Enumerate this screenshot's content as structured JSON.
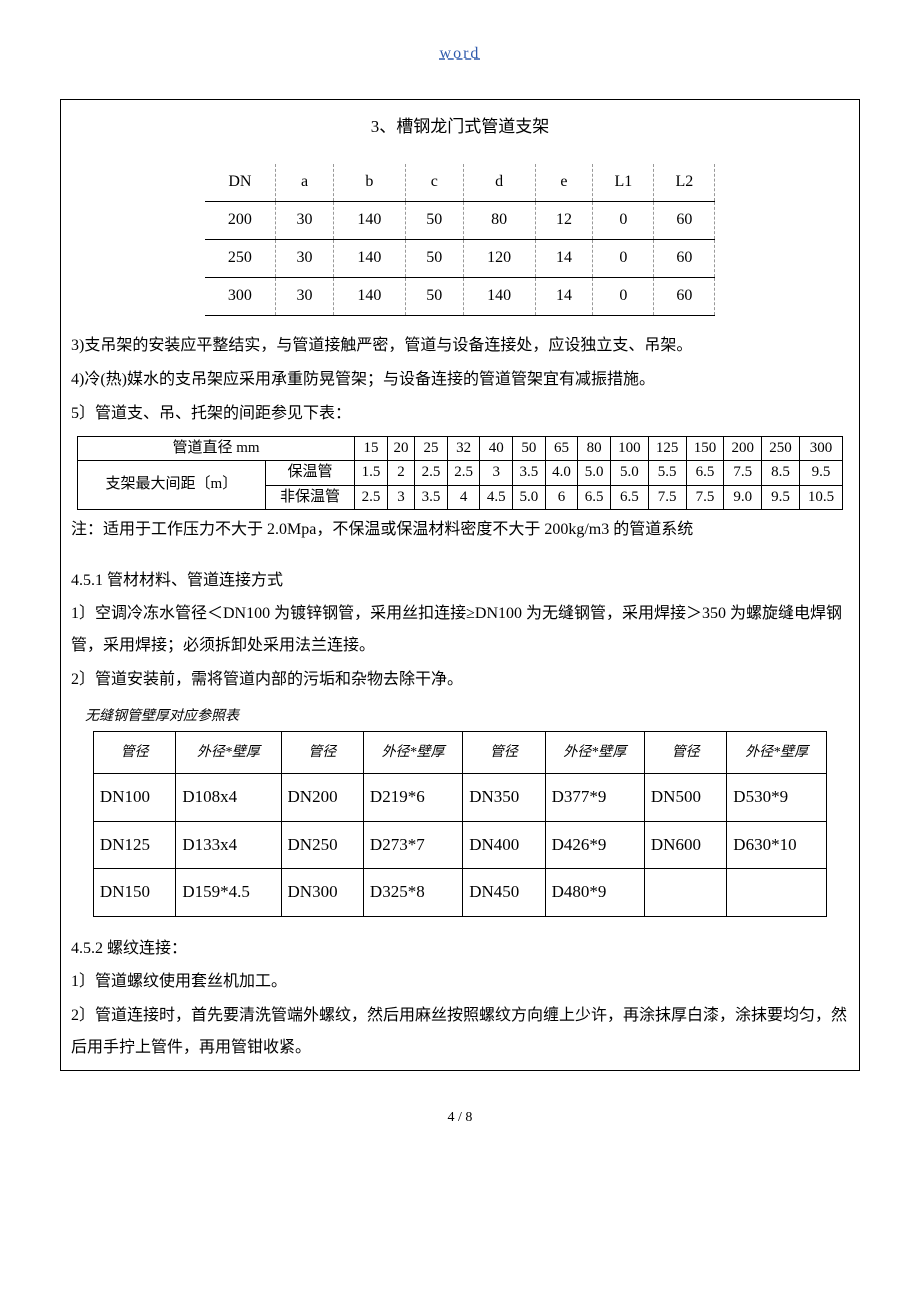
{
  "header": {
    "link_text": "word"
  },
  "box": {
    "title": "3、槽钢龙门式管道支架",
    "table1_headers": [
      "DN",
      "a",
      "b",
      "c",
      "d",
      "e",
      "L1",
      "L2"
    ],
    "table1_rows": [
      [
        "200",
        "30",
        "140",
        "50",
        "80",
        "12",
        "0",
        "60"
      ],
      [
        "250",
        "30",
        "140",
        "50",
        "120",
        "14",
        "0",
        "60"
      ],
      [
        "300",
        "30",
        "140",
        "50",
        "140",
        "14",
        "0",
        "60"
      ]
    ],
    "p3": "3)支吊架的安装应平整结实，与管道接触严密，管道与设备连接处，应设独立支、吊架。",
    "p4": "4)冷(热)媒水的支吊架应采用承重防晃管架；与设备连接的管道管架宜有减振措施。",
    "p5": "5〕管道支、吊、托架的间距参见下表：",
    "table2_head_label": "管道直径 mm",
    "table2_cols": [
      "15",
      "20",
      "25",
      "32",
      "40",
      "50",
      "65",
      "80",
      "100",
      "125",
      "150",
      "200",
      "250",
      "300"
    ],
    "table2_rowgroup_label": "支架最大间距〔m〕",
    "table2_row1_label": "保温管",
    "table2_row1": [
      "1.5",
      "2",
      "2.5",
      "2.5",
      "3",
      "3.5",
      "4.0",
      "5.0",
      "5.0",
      "5.5",
      "6.5",
      "7.5",
      "8.5",
      "9.5"
    ],
    "table2_row2_label": "非保温管",
    "table2_row2": [
      "2.5",
      "3",
      "3.5",
      "4",
      "4.5",
      "5.0",
      "6",
      "6.5",
      "6.5",
      "7.5",
      "7.5",
      "9.0",
      "9.5",
      "10.5"
    ],
    "note": "注：适用于工作压力不大于 2.0Mpa，不保温或保温材料密度不大于 200kg/m3 的管道系统",
    "s451": "4.5.1 管材材料、管道连接方式",
    "s451_p1": "1〕空调冷冻水管径＜DN100 为镀锌钢管，采用丝扣连接≥DN100 为无缝钢管，采用焊接＞350 为螺旋缝电焊钢管，采用焊接；必须拆卸处采用法兰连接。",
    "s451_p2": "2〕管道安装前，需将管道内部的污垢和杂物去除干净。",
    "caption": "无缝钢管壁厚对应参照表",
    "table3_headers": [
      "管径",
      "外径*壁厚",
      "管径",
      "外径*壁厚",
      "管径",
      "外径*壁厚",
      "管径",
      "外径*壁厚"
    ],
    "table3_rows": [
      [
        "DN100",
        "D108x4",
        "DN200",
        "D219*6",
        "DN350",
        "D377*9",
        "DN500",
        "D530*9"
      ],
      [
        "DN125",
        "D133x4",
        "DN250",
        "D273*7",
        "DN400",
        "D426*9",
        "DN600",
        "D630*10"
      ],
      [
        "DN150",
        "D159*4.5",
        "DN300",
        "D325*8",
        "DN450",
        "D480*9",
        "",
        ""
      ]
    ],
    "s452": "4.5.2 螺纹连接：",
    "s452_p1": "1〕管道螺纹使用套丝机加工。",
    "s452_p2": "2〕管道连接时，首先要清洗管端外螺纹，然后用麻丝按照螺纹方向缠上少许，再涂抹厚白漆，涂抹要均匀，然后用手拧上管件，再用管钳收紧。"
  },
  "footer": {
    "page": "4 / 8"
  }
}
